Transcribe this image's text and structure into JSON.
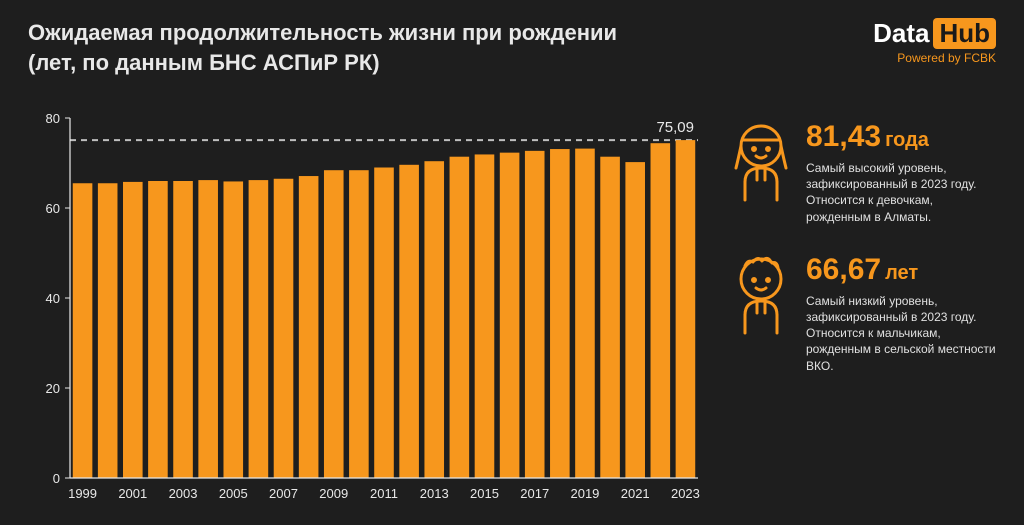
{
  "header": {
    "title_line1": "Ожидаемая продолжительность жизни при рождении",
    "title_line2": "(лет, по данным БНС АСПиР РК)",
    "logo_data": "Data",
    "logo_hub": "Hub",
    "powered": "Powered by FCBK"
  },
  "chart": {
    "type": "bar",
    "years": [
      1999,
      2000,
      2001,
      2002,
      2003,
      2004,
      2005,
      2006,
      2007,
      2008,
      2009,
      2010,
      2011,
      2012,
      2013,
      2014,
      2015,
      2016,
      2017,
      2018,
      2019,
      2020,
      2021,
      2022,
      2023
    ],
    "values": [
      65.5,
      65.5,
      65.8,
      66.0,
      66.0,
      66.2,
      65.9,
      66.2,
      66.5,
      67.1,
      68.4,
      68.4,
      69.0,
      69.6,
      70.4,
      71.4,
      71.9,
      72.3,
      72.7,
      73.1,
      73.2,
      71.4,
      70.2,
      74.4,
      75.09
    ],
    "x_tick_years": [
      1999,
      2001,
      2003,
      2005,
      2007,
      2009,
      2011,
      2013,
      2015,
      2017,
      2019,
      2021,
      2023
    ],
    "ylim": [
      0,
      80
    ],
    "ytick_step": 20,
    "bar_color": "#f7971d",
    "axis_color": "#e8e8e8",
    "grid_color": "#666666",
    "background_color": "#1e1e1e",
    "reference_line_value": 75.09,
    "reference_line_label": "75,09",
    "reference_line_color": "#bfbfbf",
    "bar_width_ratio": 0.78,
    "axis_fontsize": 13,
    "label_fontsize": 13
  },
  "stats": {
    "high": {
      "value": "81,43",
      "unit": "года",
      "desc": "Самый высокий уровень, зафиксированный в 2023 году. Относится к девочкам, рожденным в Алматы."
    },
    "low": {
      "value": "66,67",
      "unit": "лет",
      "desc": "Самый низкий уровень, зафиксированный в 2023 году. Относится к мальчикам, рожденным в сельской местности ВКО."
    }
  },
  "colors": {
    "background": "#1e1e1e",
    "text": "#e8e8e8",
    "accent": "#f7971d"
  }
}
